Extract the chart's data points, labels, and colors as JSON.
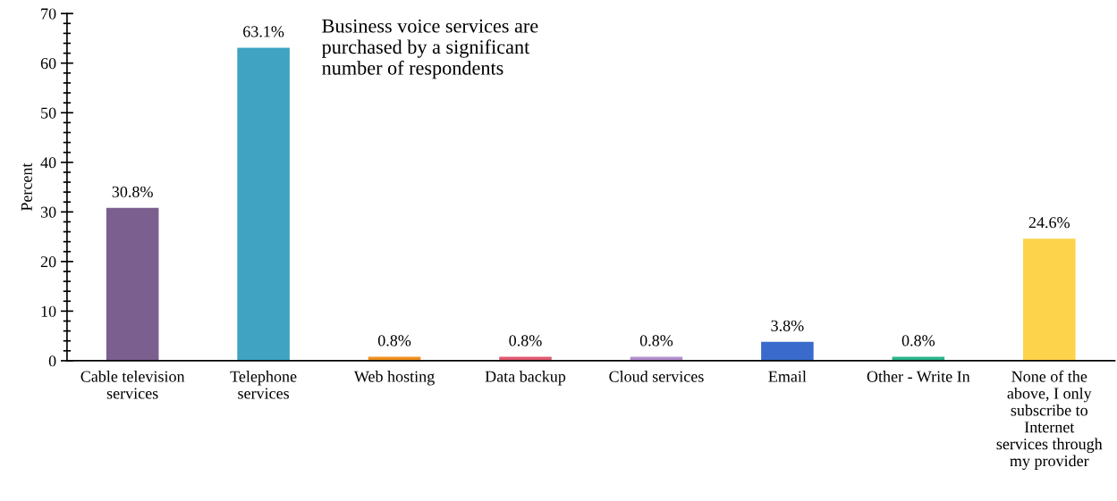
{
  "chart_data": {
    "type": "bar",
    "categories": [
      "Cable television services",
      "Telephone services",
      "Web hosting",
      "Data backup",
      "Cloud services",
      "Email",
      "Other - Write In",
      "None of the above, I only subscribe to Internet services through my provider"
    ],
    "values": [
      30.8,
      63.1,
      0.8,
      0.8,
      0.8,
      3.8,
      0.8,
      24.6
    ],
    "colors": [
      "#7b5f8f",
      "#3fa3c1",
      "#f0901e",
      "#e05a70",
      "#b38fcf",
      "#3a6bcc",
      "#2ab58a",
      "#fcd34a"
    ],
    "value_labels": [
      "30.8%",
      "63.1%",
      "0.8%",
      "0.8%",
      "0.8%",
      "3.8%",
      "0.8%",
      "24.6%"
    ],
    "ylabel": "Percent",
    "ylim": [
      0,
      70
    ],
    "yticks": [
      0,
      10,
      20,
      30,
      40,
      50,
      60,
      70
    ],
    "annotations": [
      "Business voice services are purchased by a significant number of respondents"
    ],
    "grid": false,
    "legend": false
  }
}
